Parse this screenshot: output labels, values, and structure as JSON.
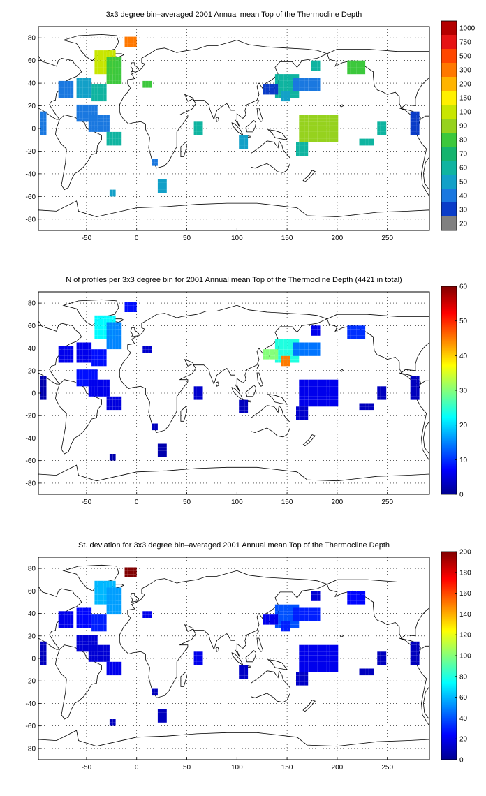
{
  "figure": {
    "panels": [
      {
        "title": "3x3 degree bin–averaged 2001 Annual mean Top of the Thermocline Depth",
        "colorbar": {
          "type": "discrete",
          "labels": [
            "20",
            "30",
            "40",
            "50",
            "60",
            "70",
            "80",
            "90",
            "100",
            "150",
            "200",
            "300",
            "500",
            "750",
            "1000"
          ],
          "colors": [
            "#808080",
            "#0a3cc8",
            "#1a78e0",
            "#12a0c8",
            "#0fb4a0",
            "#14b46e",
            "#3cc83c",
            "#96d21e",
            "#c8e600",
            "#fff000",
            "#ffb400",
            "#ff7800",
            "#ff4600",
            "#e61414",
            "#b40000"
          ]
        }
      },
      {
        "title": "N of profiles per 3x3 degree bin for 2001 Annual mean Top of the Thermocline Depth  (4421 in total)",
        "colorbar": {
          "type": "continuous",
          "min": 0,
          "max": 60,
          "ticks": [
            "0",
            "10",
            "20",
            "30",
            "40",
            "50",
            "60"
          ]
        }
      },
      {
        "title": "St. deviation for 3x3 degree bin–averaged 2001 Annual mean Top of the Thermocline Depth",
        "colorbar": {
          "type": "continuous",
          "min": 0,
          "max": 200,
          "ticks": [
            "0",
            "20",
            "40",
            "60",
            "80",
            "100",
            "120",
            "140",
            "160",
            "180",
            "200"
          ]
        }
      }
    ],
    "x_ticks": [
      "-50",
      "0",
      "50",
      "100",
      "150",
      "200",
      "250"
    ],
    "y_ticks": [
      "80",
      "60",
      "40",
      "20",
      "0",
      "-20",
      "-40",
      "-60",
      "-80"
    ],
    "x_range": [
      -98,
      292
    ],
    "y_range": [
      -90,
      90
    ],
    "grid": "dotted"
  }
}
